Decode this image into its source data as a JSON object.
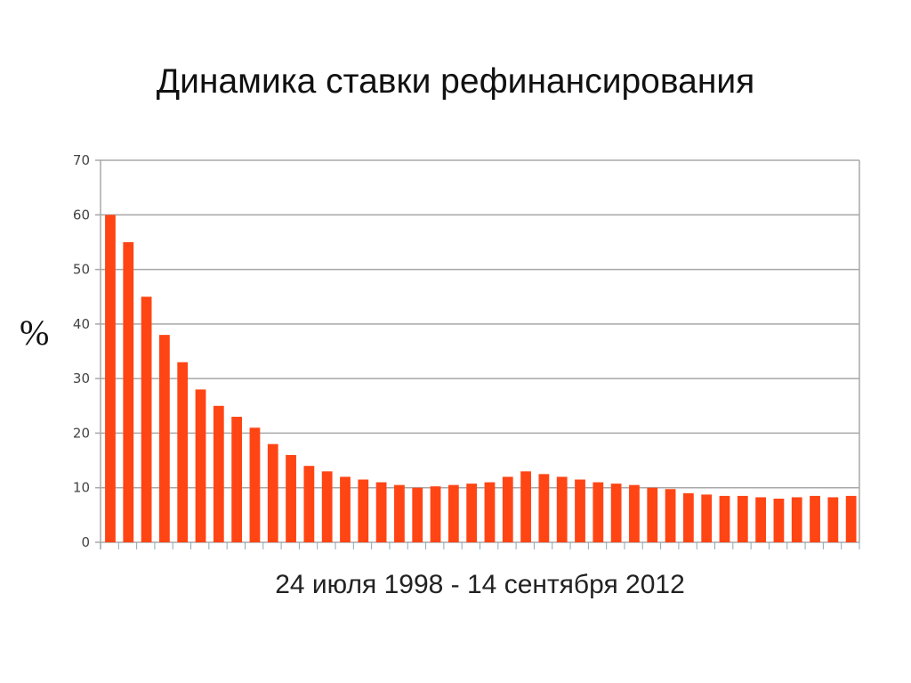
{
  "chart_data": {
    "type": "bar",
    "title": "Динамика ставки рефинансирования",
    "ylabel": "%",
    "xlabel": "24 июля 1998 - 14 сентября 2012",
    "ylim": [
      0,
      70
    ],
    "yticks": [
      "0",
      "10",
      "20",
      "30",
      "40",
      "50",
      "60",
      "70"
    ],
    "grid": true,
    "bar_color": "#ff4514",
    "values": [
      60,
      55,
      45,
      38,
      33,
      28,
      25,
      23,
      21,
      18,
      16,
      14,
      13,
      12,
      11.5,
      11,
      10.5,
      10,
      10.25,
      10.5,
      10.75,
      11,
      12,
      13,
      12.5,
      12,
      11.5,
      11,
      10.75,
      10.5,
      10,
      9.75,
      9,
      8.75,
      8.5,
      8.5,
      8.25,
      8,
      8.25,
      8.5,
      8.25,
      8.5
    ]
  }
}
